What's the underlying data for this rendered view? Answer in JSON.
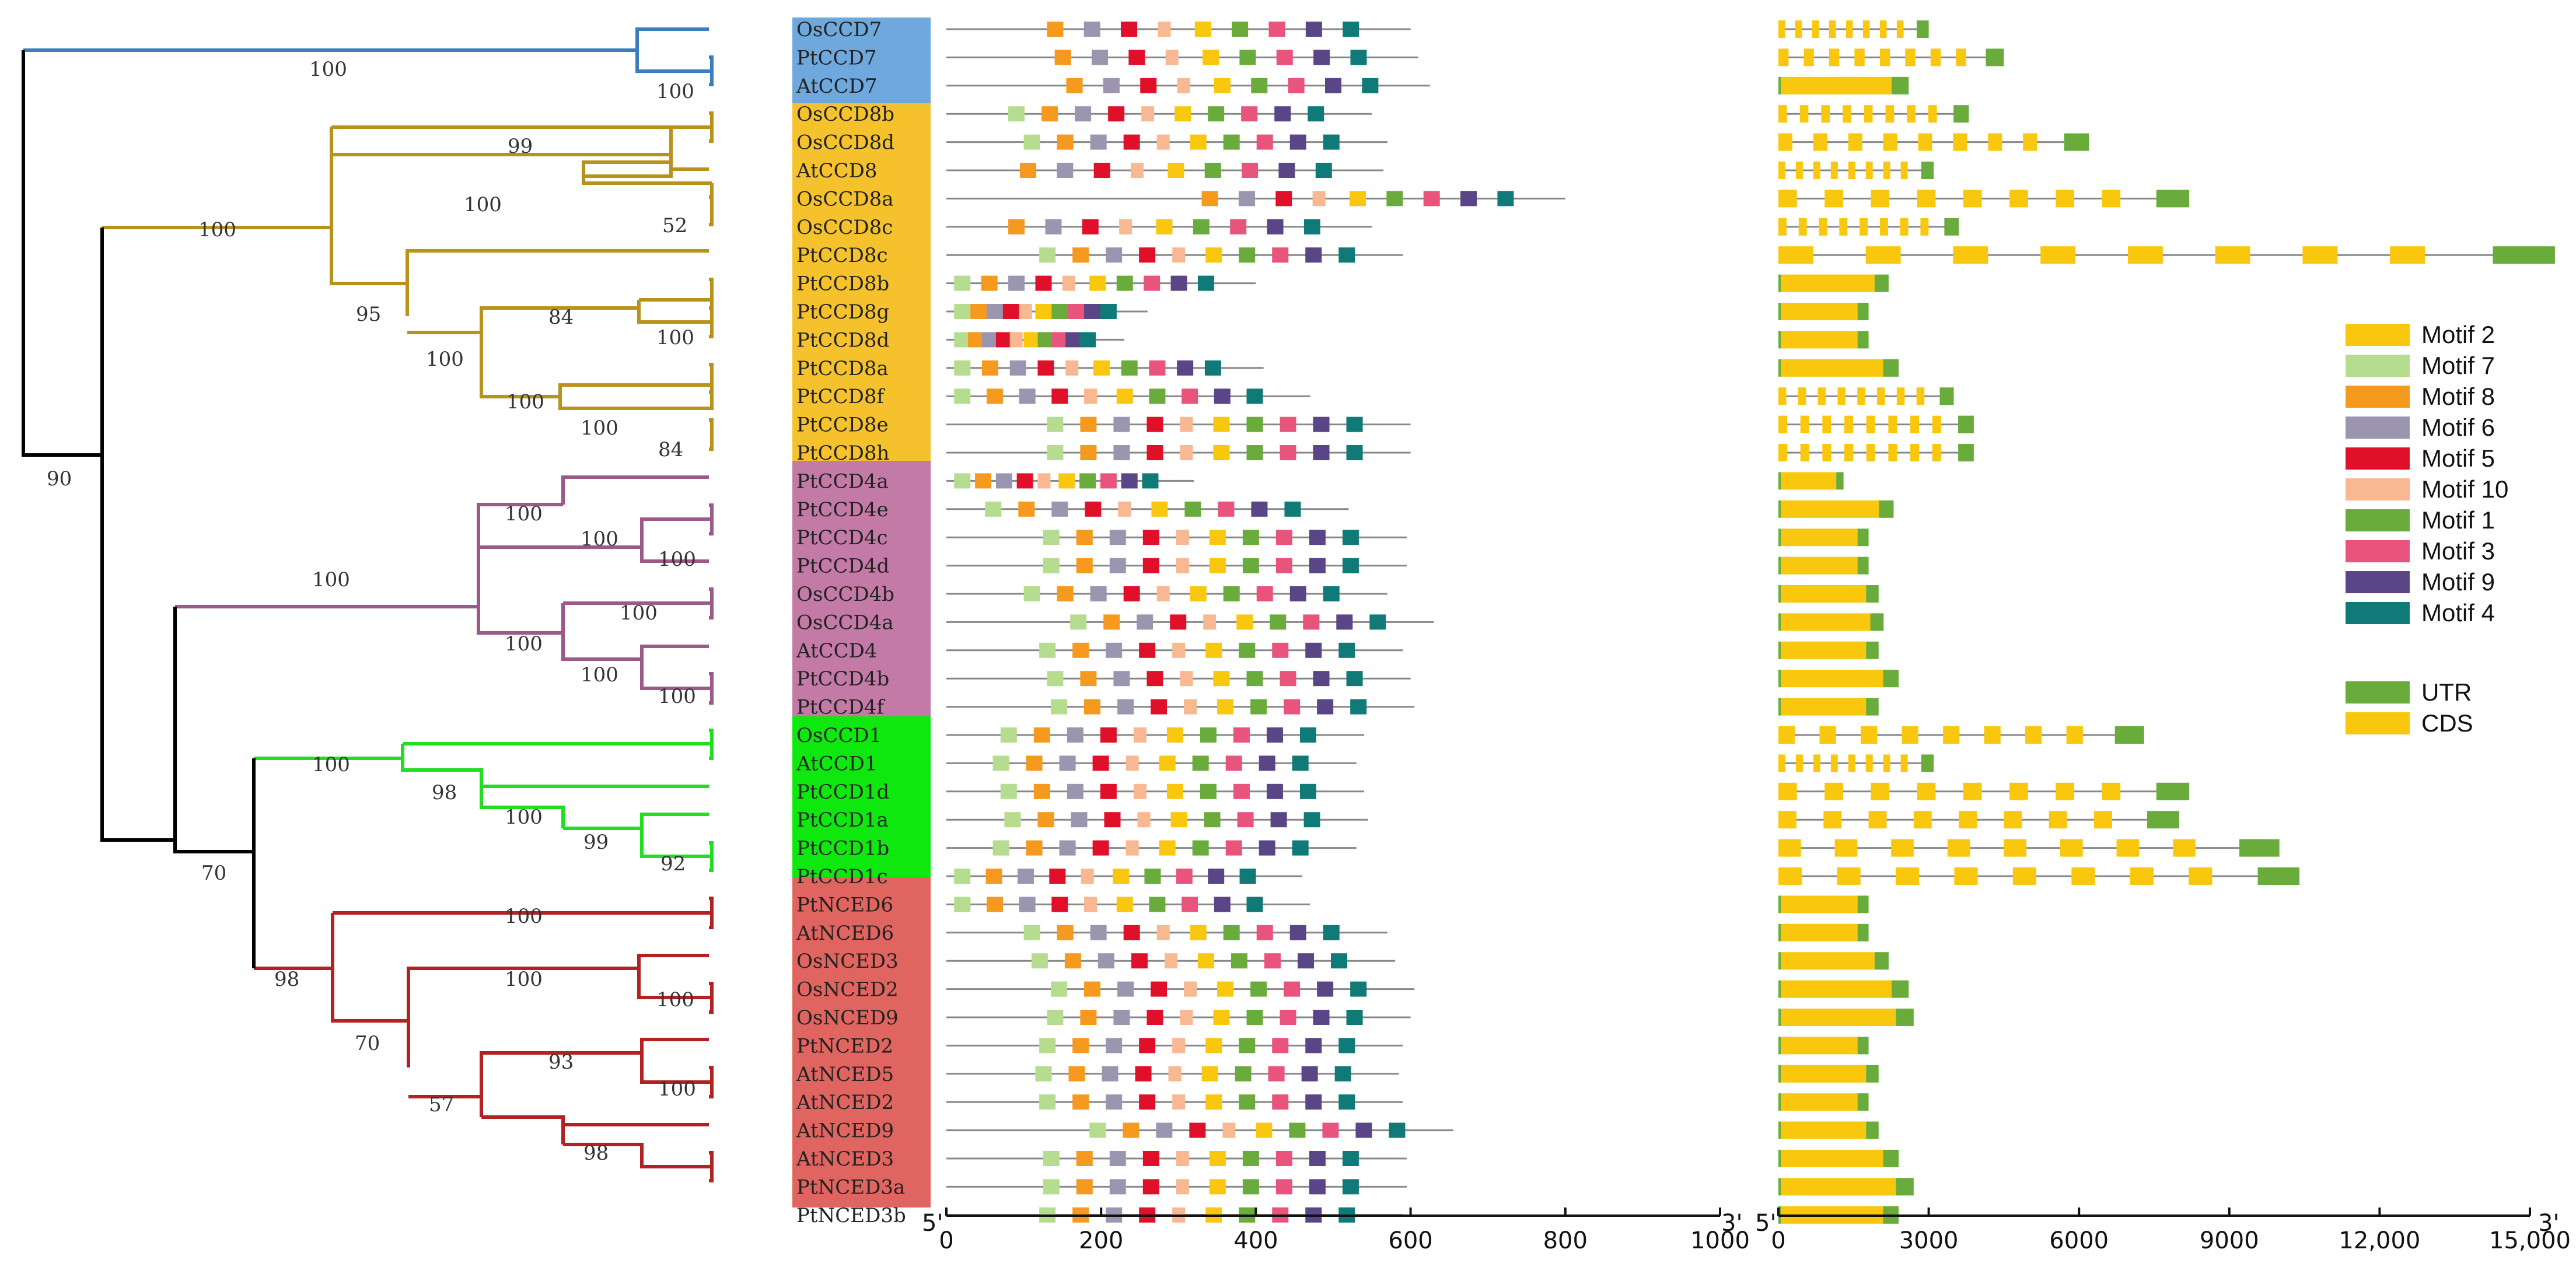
{
  "genes": [
    "OsCCD7",
    "PtCCD7",
    "AtCCD7",
    "OsCCD8b",
    "OsCCD8d",
    "AtCCD8",
    "OsCCD8a",
    "OsCCD8c",
    "PtCCD8c",
    "PtCCD8b",
    "PtCCD8g",
    "PtCCD8d",
    "PtCCD8a",
    "PtCCD8f",
    "PtCCD8e",
    "PtCCD8h",
    "PtCCD4a",
    "PtCCD4e",
    "PtCCD4c",
    "PtCCD4d",
    "OsCCD4b",
    "OsCCD4a",
    "AtCCD4",
    "PtCCD4b",
    "PtCCD4f",
    "OsCCD1",
    "AtCCD1",
    "PtCCD1d",
    "PtCCD1a",
    "PtCCD1b",
    "PtCCD1c",
    "PtNCED6",
    "AtNCED6",
    "OsNCED3",
    "OsNCED2",
    "OsNCED9",
    "PtNCED2",
    "AtNCED5",
    "AtNCED2",
    "AtNCED9",
    "AtNCED3",
    "PtNCED3a",
    "PtNCED3b"
  ],
  "tree": {
    "bootstraps": [
      {
        "id": "b1",
        "value": "100"
      },
      {
        "id": "b2",
        "value": "100"
      },
      {
        "id": "b3",
        "value": "99"
      },
      {
        "id": "b4",
        "value": "100"
      },
      {
        "id": "b5",
        "value": "100"
      },
      {
        "id": "b6",
        "value": "52"
      },
      {
        "id": "b7",
        "value": "95"
      },
      {
        "id": "b8",
        "value": "84"
      },
      {
        "id": "b9",
        "value": "100"
      },
      {
        "id": "b10",
        "value": "100"
      },
      {
        "id": "b11",
        "value": "100"
      },
      {
        "id": "b12",
        "value": "100"
      },
      {
        "id": "b13",
        "value": "84"
      },
      {
        "id": "b14",
        "value": "90"
      },
      {
        "id": "b15",
        "value": "100"
      },
      {
        "id": "b16",
        "value": "100"
      },
      {
        "id": "b17",
        "value": "100"
      },
      {
        "id": "b18",
        "value": "100"
      },
      {
        "id": "b19",
        "value": "100"
      },
      {
        "id": "b20",
        "value": "100"
      },
      {
        "id": "b21",
        "value": "100"
      },
      {
        "id": "b22",
        "value": "100"
      },
      {
        "id": "b23",
        "value": "100"
      },
      {
        "id": "b24",
        "value": "98"
      },
      {
        "id": "b25",
        "value": "100"
      },
      {
        "id": "b26",
        "value": "99"
      },
      {
        "id": "b27",
        "value": "92"
      },
      {
        "id": "b28",
        "value": "70"
      },
      {
        "id": "b29",
        "value": "100"
      },
      {
        "id": "b30",
        "value": "100"
      },
      {
        "id": "b31",
        "value": "100"
      },
      {
        "id": "b32",
        "value": "98"
      },
      {
        "id": "b33",
        "value": "70"
      },
      {
        "id": "b34",
        "value": "93"
      },
      {
        "id": "b35",
        "value": "100"
      },
      {
        "id": "b36",
        "value": "57"
      },
      {
        "id": "b37",
        "value": "98"
      }
    ]
  },
  "clade_colors": {
    "ccd7": "#3a7ebf",
    "ccd8": "#b8931c",
    "ccd4": "#9b5a8a",
    "ccd1": "#22dd22",
    "nced": "#b22222",
    "root": "#000000"
  },
  "box_colors": {
    "ccd7": "#6ea8dc",
    "ccd8": "#f5c22e",
    "ccd4": "#c47aa6",
    "ccd1": "#0fe80f",
    "nced": "#e0645f"
  },
  "legend": {
    "motifs": [
      {
        "name": "Motif 2",
        "color": "#f9c80e"
      },
      {
        "name": "Motif 7",
        "color": "#b5dc8f"
      },
      {
        "name": "Motif 8",
        "color": "#f59a1f"
      },
      {
        "name": "Motif 6",
        "color": "#9c95b0"
      },
      {
        "name": "Motif 5",
        "color": "#e0102a"
      },
      {
        "name": "Motif 10",
        "color": "#f8b892"
      },
      {
        "name": "Motif 1",
        "color": "#6aac3c"
      },
      {
        "name": "Motif 3",
        "color": "#e8547c"
      },
      {
        "name": "Motif 9",
        "color": "#5a4587"
      },
      {
        "name": "Motif 4",
        "color": "#0f7a78"
      }
    ],
    "structure": [
      {
        "name": "UTR",
        "color": "#6aac3c"
      },
      {
        "name": "CDS",
        "color": "#f9c80e"
      }
    ]
  },
  "motif_axis": {
    "five_prime": "5'",
    "three_prime": "3'",
    "ticks": [
      "0",
      "200",
      "400",
      "600",
      "800",
      "1000"
    ]
  },
  "gene_axis": {
    "five_prime": "5'",
    "three_prime": "3'",
    "ticks": [
      "0",
      "3000",
      "6000",
      "9000",
      "12,000",
      "15,000"
    ]
  }
}
